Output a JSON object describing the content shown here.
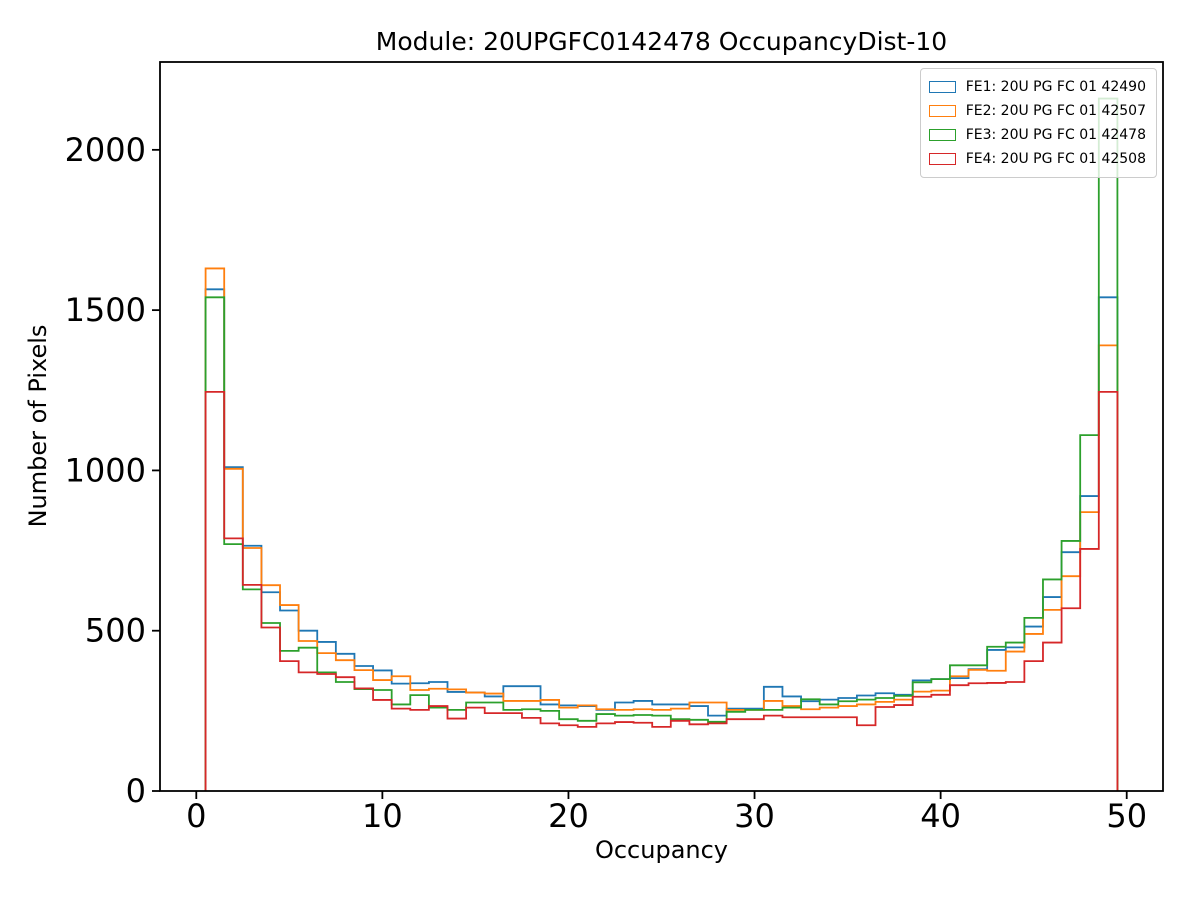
{
  "figure": {
    "background": "#ffffff",
    "axes_frame_color": "#000000"
  },
  "chart_data": {
    "type": "line",
    "style": "step-histogram",
    "title": "Module: 20UPGFC0142478 OccupancyDist-10",
    "xlabel": "Occupancy",
    "ylabel": "Number of Pixels",
    "grid": false,
    "legend_position": "upper right",
    "xlim": [
      -1.95,
      51.95
    ],
    "ylim": [
      0,
      2274
    ],
    "xticks": [
      0,
      10,
      20,
      30,
      40,
      50
    ],
    "yticks": [
      0,
      500,
      1000,
      1500,
      2000
    ],
    "bin_start": 0.5,
    "bin_width": 1.0,
    "n_bins": 49,
    "bin_centers": [
      1,
      2,
      3,
      4,
      5,
      6,
      7,
      8,
      9,
      10,
      11,
      12,
      13,
      14,
      15,
      16,
      17,
      18,
      19,
      20,
      21,
      22,
      23,
      24,
      25,
      26,
      27,
      28,
      29,
      30,
      31,
      32,
      33,
      34,
      35,
      36,
      37,
      38,
      39,
      40,
      41,
      42,
      43,
      44,
      45,
      46,
      47,
      48,
      49
    ],
    "series": [
      {
        "name": "FE1: 20U PG FC 01 42490",
        "color": "#1f77b4",
        "values": [
          1565,
          1010,
          765,
          620,
          563,
          500,
          465,
          428,
          390,
          376,
          335,
          336,
          340,
          309,
          307,
          295,
          327,
          327,
          270,
          267,
          265,
          253,
          276,
          281,
          270,
          270,
          265,
          235,
          257,
          257,
          325,
          295,
          280,
          285,
          290,
          298,
          305,
          300,
          345,
          349,
          352,
          380,
          440,
          448,
          513,
          605,
          745,
          920,
          1540
        ]
      },
      {
        "name": "FE2: 20U PG FC 01 42507",
        "color": "#ff7f0e",
        "values": [
          1630,
          1005,
          758,
          642,
          580,
          468,
          430,
          408,
          377,
          346,
          358,
          315,
          319,
          317,
          307,
          304,
          281,
          281,
          284,
          260,
          267,
          255,
          253,
          255,
          253,
          257,
          276,
          276,
          253,
          253,
          281,
          265,
          255,
          260,
          265,
          270,
          278,
          285,
          310,
          313,
          358,
          378,
          375,
          435,
          490,
          565,
          670,
          870,
          1390
        ]
      },
      {
        "name": "FE3: 20U PG FC 01 42478",
        "color": "#2ca02c",
        "values": [
          1540,
          770,
          629,
          524,
          437,
          447,
          370,
          340,
          318,
          315,
          270,
          299,
          260,
          253,
          276,
          276,
          253,
          255,
          250,
          224,
          219,
          240,
          235,
          237,
          235,
          224,
          222,
          216,
          247,
          253,
          253,
          260,
          286,
          270,
          280,
          285,
          290,
          297,
          339,
          349,
          392,
          392,
          450,
          463,
          540,
          660,
          780,
          1110,
          2160
        ]
      },
      {
        "name": "FE4: 20U PG FC 01 42508",
        "color": "#d62728",
        "values": [
          1245,
          788,
          643,
          510,
          405,
          370,
          365,
          355,
          320,
          284,
          257,
          253,
          265,
          226,
          260,
          243,
          243,
          228,
          211,
          205,
          200,
          211,
          215,
          213,
          200,
          219,
          208,
          211,
          224,
          224,
          235,
          230,
          230,
          230,
          230,
          205,
          262,
          268,
          294,
          300,
          330,
          336,
          337,
          340,
          405,
          463,
          570,
          755,
          1245
        ]
      }
    ]
  }
}
